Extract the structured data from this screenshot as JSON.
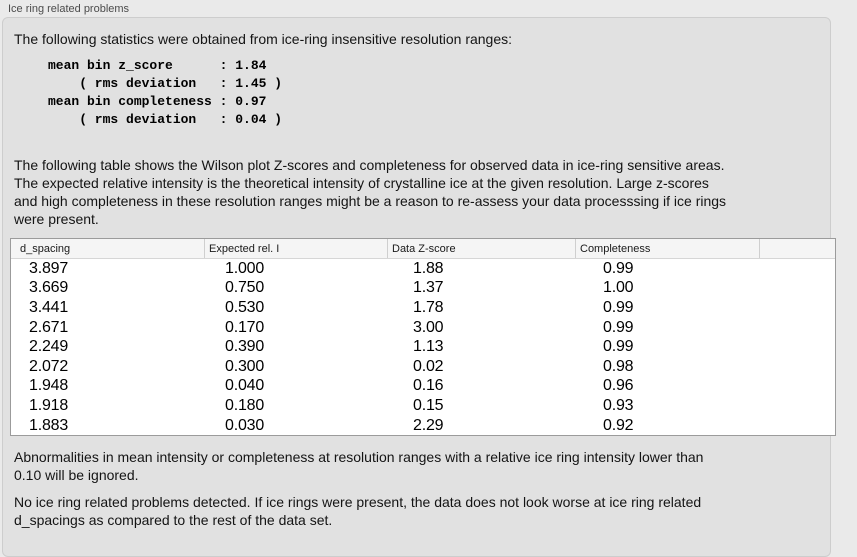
{
  "panel": {
    "title": "Ice ring related problems"
  },
  "intro": "The following statistics were obtained from ice-ring insensitive resolution ranges:",
  "stats_block": "mean bin z_score      : 1.84\n    ( rms deviation   : 1.45 )\nmean bin completeness : 0.97\n    ( rms deviation   : 0.04 )",
  "stats": {
    "mean_bin_z_score": "1.84",
    "z_score_rms_deviation": "1.45",
    "mean_bin_completeness": "0.97",
    "completeness_rms_deviation": "0.04"
  },
  "table_description": "The following table shows the Wilson plot Z-scores and completeness for observed data in ice-ring sensitive areas.\nThe expected relative intensity is the theoretical intensity of crystalline ice at the given resolution. Large z-scores\nand high completeness in these resolution ranges might be a reason to re-assess your data processsing if ice rings\nwere present.",
  "table": {
    "columns": [
      "d_spacing",
      "Expected rel. I",
      "Data Z-score",
      "Completeness",
      ""
    ],
    "rows": [
      [
        "3.897",
        "1.000",
        "1.88",
        "0.99"
      ],
      [
        "3.669",
        "0.750",
        "1.37",
        "1.00"
      ],
      [
        "3.441",
        "0.530",
        "1.78",
        "0.99"
      ],
      [
        "2.671",
        "0.170",
        "3.00",
        "0.99"
      ],
      [
        "2.249",
        "0.390",
        "1.13",
        "0.99"
      ],
      [
        "2.072",
        "0.300",
        "0.02",
        "0.98"
      ],
      [
        "1.948",
        "0.040",
        "0.16",
        "0.96"
      ],
      [
        "1.918",
        "0.180",
        "0.15",
        "0.93"
      ],
      [
        "1.883",
        "0.030",
        "2.29",
        "0.92"
      ]
    ]
  },
  "note_ignore": "Abnormalities in mean intensity or completeness at resolution ranges with a relative ice ring intensity lower than\n0.10 will be ignored.",
  "conclusion": "No ice ring related problems detected. If ice rings were present, the data does not look worse at ice ring related\nd_spacings as compared to the rest of the data set."
}
